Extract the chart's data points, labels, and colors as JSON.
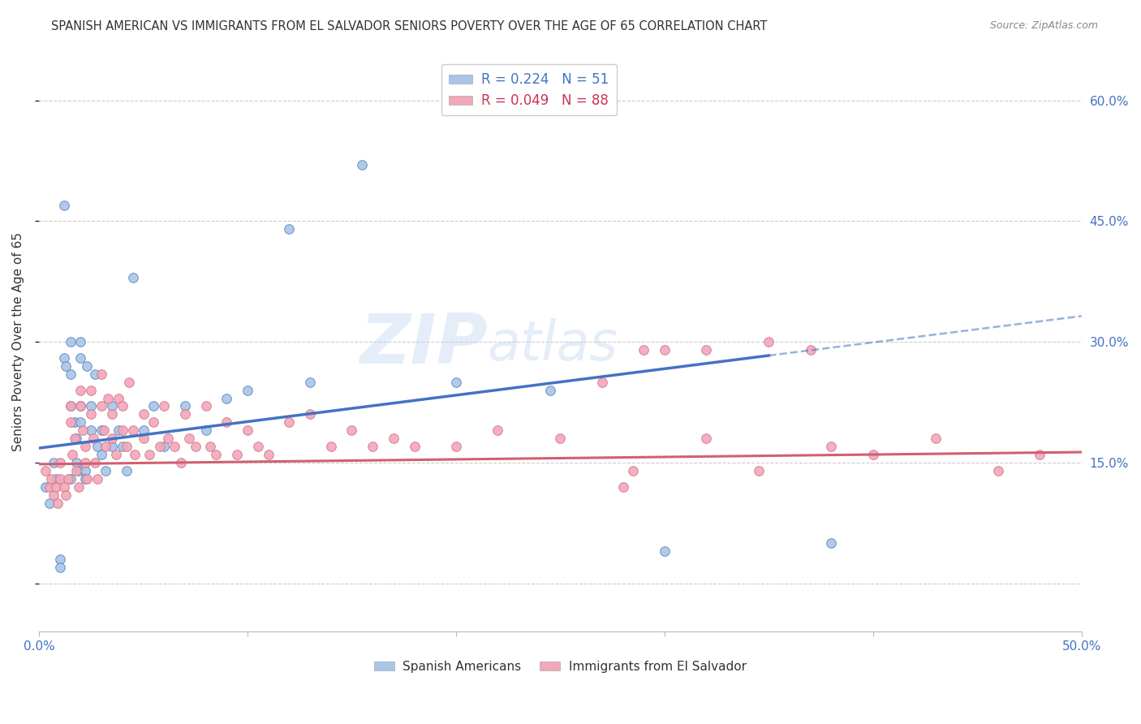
{
  "title": "SPANISH AMERICAN VS IMMIGRANTS FROM EL SALVADOR SENIORS POVERTY OVER THE AGE OF 65 CORRELATION CHART",
  "source": "Source: ZipAtlas.com",
  "ylabel": "Seniors Poverty Over the Age of 65",
  "y_ticks": [
    0.0,
    0.15,
    0.3,
    0.45,
    0.6
  ],
  "y_tick_labels": [
    "",
    "15.0%",
    "30.0%",
    "45.0%",
    "60.0%"
  ],
  "x_range": [
    0.0,
    0.5
  ],
  "y_range": [
    -0.06,
    0.66
  ],
  "watermark_zip": "ZIP",
  "watermark_atlas": "atlas",
  "series1_label": "Spanish Americans",
  "series2_label": "Immigrants from El Salvador",
  "series1_color": "#aac4e8",
  "series2_color": "#f4a7b9",
  "series1_edge_color": "#5588bb",
  "series2_edge_color": "#cc7788",
  "line1_color": "#4472c4",
  "line2_color": "#d06070",
  "background_color": "#ffffff",
  "grid_color": "#cccccc",
  "title_color": "#333333",
  "source_color": "#888888",
  "line1_x0": 0.0,
  "line1_y0": 0.168,
  "line1_x1": 0.35,
  "line1_y1": 0.283,
  "line1_dash_x0": 0.35,
  "line1_dash_y0": 0.283,
  "line1_dash_x1": 0.5,
  "line1_dash_y1": 0.332,
  "line2_x0": 0.0,
  "line2_y0": 0.148,
  "line2_x1": 0.5,
  "line2_y1": 0.163,
  "series1_x": [
    0.003,
    0.005,
    0.007,
    0.008,
    0.01,
    0.01,
    0.012,
    0.012,
    0.013,
    0.015,
    0.015,
    0.015,
    0.015,
    0.017,
    0.018,
    0.018,
    0.019,
    0.02,
    0.02,
    0.02,
    0.02,
    0.022,
    0.022,
    0.023,
    0.025,
    0.025,
    0.027,
    0.028,
    0.03,
    0.03,
    0.032,
    0.035,
    0.035,
    0.038,
    0.04,
    0.042,
    0.045,
    0.05,
    0.055,
    0.06,
    0.07,
    0.08,
    0.09,
    0.1,
    0.12,
    0.13,
    0.155,
    0.2,
    0.245,
    0.3,
    0.38
  ],
  "series1_y": [
    0.12,
    0.1,
    0.15,
    0.13,
    0.03,
    0.02,
    0.47,
    0.28,
    0.27,
    0.3,
    0.26,
    0.22,
    0.13,
    0.2,
    0.18,
    0.15,
    0.14,
    0.3,
    0.28,
    0.22,
    0.2,
    0.14,
    0.13,
    0.27,
    0.22,
    0.19,
    0.26,
    0.17,
    0.19,
    0.16,
    0.14,
    0.22,
    0.17,
    0.19,
    0.17,
    0.14,
    0.38,
    0.19,
    0.22,
    0.17,
    0.22,
    0.19,
    0.23,
    0.24,
    0.44,
    0.25,
    0.52,
    0.25,
    0.24,
    0.04,
    0.05
  ],
  "series2_x": [
    0.003,
    0.005,
    0.006,
    0.007,
    0.008,
    0.009,
    0.01,
    0.01,
    0.012,
    0.013,
    0.014,
    0.015,
    0.015,
    0.016,
    0.017,
    0.018,
    0.019,
    0.02,
    0.02,
    0.021,
    0.022,
    0.022,
    0.023,
    0.025,
    0.025,
    0.026,
    0.027,
    0.028,
    0.03,
    0.03,
    0.031,
    0.032,
    0.033,
    0.035,
    0.035,
    0.037,
    0.038,
    0.04,
    0.04,
    0.042,
    0.043,
    0.045,
    0.046,
    0.05,
    0.05,
    0.053,
    0.055,
    0.058,
    0.06,
    0.062,
    0.065,
    0.068,
    0.07,
    0.072,
    0.075,
    0.08,
    0.082,
    0.085,
    0.09,
    0.095,
    0.1,
    0.105,
    0.11,
    0.12,
    0.13,
    0.14,
    0.15,
    0.16,
    0.17,
    0.18,
    0.2,
    0.22,
    0.25,
    0.27,
    0.28,
    0.32,
    0.35,
    0.38,
    0.4,
    0.43,
    0.46,
    0.48,
    0.37,
    0.29,
    0.3,
    0.32,
    0.345,
    0.285
  ],
  "series2_y": [
    0.14,
    0.12,
    0.13,
    0.11,
    0.12,
    0.1,
    0.15,
    0.13,
    0.12,
    0.11,
    0.13,
    0.22,
    0.2,
    0.16,
    0.18,
    0.14,
    0.12,
    0.24,
    0.22,
    0.19,
    0.17,
    0.15,
    0.13,
    0.24,
    0.21,
    0.18,
    0.15,
    0.13,
    0.26,
    0.22,
    0.19,
    0.17,
    0.23,
    0.21,
    0.18,
    0.16,
    0.23,
    0.22,
    0.19,
    0.17,
    0.25,
    0.19,
    0.16,
    0.21,
    0.18,
    0.16,
    0.2,
    0.17,
    0.22,
    0.18,
    0.17,
    0.15,
    0.21,
    0.18,
    0.17,
    0.22,
    0.17,
    0.16,
    0.2,
    0.16,
    0.19,
    0.17,
    0.16,
    0.2,
    0.21,
    0.17,
    0.19,
    0.17,
    0.18,
    0.17,
    0.17,
    0.19,
    0.18,
    0.25,
    0.12,
    0.18,
    0.3,
    0.17,
    0.16,
    0.18,
    0.14,
    0.16,
    0.29,
    0.29,
    0.29,
    0.29,
    0.14,
    0.14
  ]
}
